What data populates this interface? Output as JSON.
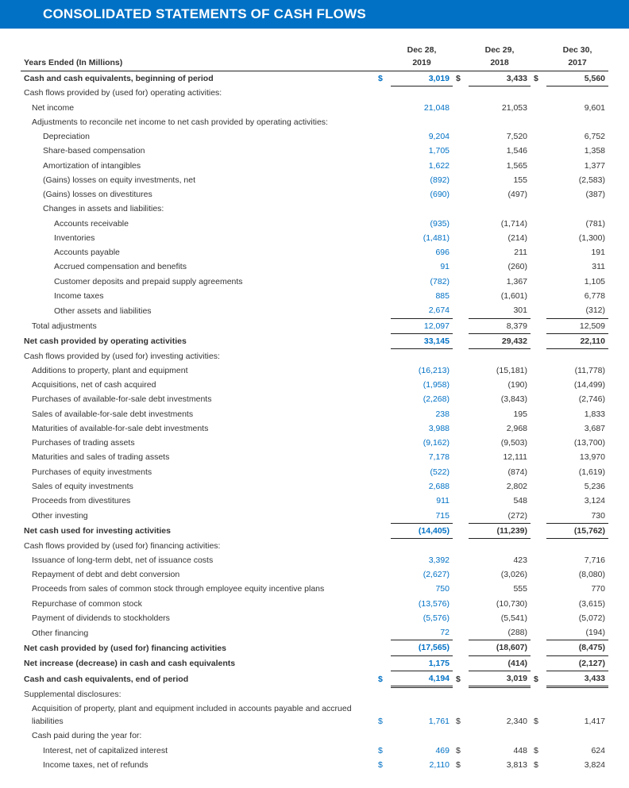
{
  "title": "CONSOLIDATED STATEMENTS OF CASH FLOWS",
  "header": {
    "years_label": "Years Ended (In Millions)",
    "cols": [
      "Dec 28,\n2019",
      "Dec 29,\n2018",
      "Dec 30,\n2017"
    ]
  },
  "rows": [
    {
      "label": "Cash and cash equivalents, beginning of period",
      "bold": true,
      "cur": [
        "$",
        "$",
        "$"
      ],
      "vals": [
        "3,019",
        "3,433",
        "5,560"
      ],
      "blueCol": 0,
      "bb": true
    },
    {
      "label": "Cash flows provided by (used for) operating activities:",
      "vals": [
        "",
        "",
        ""
      ]
    },
    {
      "label": "Net income",
      "ind": 1,
      "vals": [
        "21,048",
        "21,053",
        "9,601"
      ],
      "blueCol": 0
    },
    {
      "label": "Adjustments to reconcile net income to net cash provided by operating activities:",
      "ind": 1,
      "vals": [
        "",
        "",
        ""
      ]
    },
    {
      "label": "Depreciation",
      "ind": 2,
      "vals": [
        "9,204",
        "7,520",
        "6,752"
      ],
      "blueCol": 0
    },
    {
      "label": "Share-based compensation",
      "ind": 2,
      "vals": [
        "1,705",
        "1,546",
        "1,358"
      ],
      "blueCol": 0
    },
    {
      "label": "Amortization of intangibles",
      "ind": 2,
      "vals": [
        "1,622",
        "1,565",
        "1,377"
      ],
      "blueCol": 0
    },
    {
      "label": "(Gains) losses on equity investments, net",
      "ind": 2,
      "vals": [
        "(892)",
        "155",
        "(2,583)"
      ],
      "blueCol": 0
    },
    {
      "label": "(Gains) losses on divestitures",
      "ind": 2,
      "vals": [
        "(690)",
        "(497)",
        "(387)"
      ],
      "blueCol": 0
    },
    {
      "label": "Changes in assets and liabilities:",
      "ind": 2,
      "vals": [
        "",
        "",
        ""
      ]
    },
    {
      "label": "Accounts receivable",
      "ind": 3,
      "vals": [
        "(935)",
        "(1,714)",
        "(781)"
      ],
      "blueCol": 0
    },
    {
      "label": "Inventories",
      "ind": 3,
      "vals": [
        "(1,481)",
        "(214)",
        "(1,300)"
      ],
      "blueCol": 0
    },
    {
      "label": "Accounts payable",
      "ind": 3,
      "vals": [
        "696",
        "211",
        "191"
      ],
      "blueCol": 0
    },
    {
      "label": "Accrued compensation and benefits",
      "ind": 3,
      "vals": [
        "91",
        "(260)",
        "311"
      ],
      "blueCol": 0
    },
    {
      "label": "Customer deposits and prepaid supply agreements",
      "ind": 3,
      "vals": [
        "(782)",
        "1,367",
        "1,105"
      ],
      "blueCol": 0
    },
    {
      "label": "Income taxes",
      "ind": 3,
      "vals": [
        "885",
        "(1,601)",
        "6,778"
      ],
      "blueCol": 0
    },
    {
      "label": "Other assets and liabilities",
      "ind": 3,
      "vals": [
        "2,674",
        "301",
        "(312)"
      ],
      "blueCol": 0
    },
    {
      "label": "Total adjustments",
      "ind": 1,
      "vals": [
        "12,097",
        "8,379",
        "12,509"
      ],
      "blueCol": 0,
      "bt": true
    },
    {
      "label": "Net cash provided by operating activities",
      "bold": true,
      "vals": [
        "33,145",
        "29,432",
        "22,110"
      ],
      "blueCol": 0,
      "bt": true,
      "bb": true
    },
    {
      "label": "Cash flows provided by (used for) investing activities:",
      "vals": [
        "",
        "",
        ""
      ]
    },
    {
      "label": "Additions to property, plant and equipment",
      "ind": 1,
      "vals": [
        "(16,213)",
        "(15,181)",
        "(11,778)"
      ],
      "blueCol": 0
    },
    {
      "label": "Acquisitions, net of cash acquired",
      "ind": 1,
      "vals": [
        "(1,958)",
        "(190)",
        "(14,499)"
      ],
      "blueCol": 0
    },
    {
      "label": "Purchases of available-for-sale debt investments",
      "ind": 1,
      "vals": [
        "(2,268)",
        "(3,843)",
        "(2,746)"
      ],
      "blueCol": 0
    },
    {
      "label": "Sales of available-for-sale debt investments",
      "ind": 1,
      "vals": [
        "238",
        "195",
        "1,833"
      ],
      "blueCol": 0
    },
    {
      "label": "Maturities of available-for-sale debt investments",
      "ind": 1,
      "vals": [
        "3,988",
        "2,968",
        "3,687"
      ],
      "blueCol": 0
    },
    {
      "label": "Purchases of trading assets",
      "ind": 1,
      "vals": [
        "(9,162)",
        "(9,503)",
        "(13,700)"
      ],
      "blueCol": 0
    },
    {
      "label": "Maturities and sales of trading assets",
      "ind": 1,
      "vals": [
        "7,178",
        "12,111",
        "13,970"
      ],
      "blueCol": 0
    },
    {
      "label": "Purchases of equity investments",
      "ind": 1,
      "vals": [
        "(522)",
        "(874)",
        "(1,619)"
      ],
      "blueCol": 0
    },
    {
      "label": "Sales of equity investments",
      "ind": 1,
      "vals": [
        "2,688",
        "2,802",
        "5,236"
      ],
      "blueCol": 0
    },
    {
      "label": "Proceeds from divestitures",
      "ind": 1,
      "vals": [
        "911",
        "548",
        "3,124"
      ],
      "blueCol": 0
    },
    {
      "label": "Other investing",
      "ind": 1,
      "vals": [
        "715",
        "(272)",
        "730"
      ],
      "blueCol": 0
    },
    {
      "label": "Net cash used for investing activities",
      "bold": true,
      "vals": [
        "(14,405)",
        "(11,239)",
        "(15,762)"
      ],
      "blueCol": 0,
      "bt": true,
      "bb": true
    },
    {
      "label": "Cash flows provided by (used for) financing activities:",
      "vals": [
        "",
        "",
        ""
      ]
    },
    {
      "label": "Issuance of long-term debt, net of issuance costs",
      "ind": 1,
      "vals": [
        "3,392",
        "423",
        "7,716"
      ],
      "blueCol": 0
    },
    {
      "label": "Repayment of debt and debt conversion",
      "ind": 1,
      "vals": [
        "(2,627)",
        "(3,026)",
        "(8,080)"
      ],
      "blueCol": 0
    },
    {
      "label": "Proceeds from sales of common stock through employee equity incentive plans",
      "ind": 1,
      "vals": [
        "750",
        "555",
        "770"
      ],
      "blueCol": 0
    },
    {
      "label": "Repurchase of common stock",
      "ind": 1,
      "vals": [
        "(13,576)",
        "(10,730)",
        "(3,615)"
      ],
      "blueCol": 0
    },
    {
      "label": "Payment of dividends to stockholders",
      "ind": 1,
      "vals": [
        "(5,576)",
        "(5,541)",
        "(5,072)"
      ],
      "blueCol": 0
    },
    {
      "label": "Other financing",
      "ind": 1,
      "vals": [
        "72",
        "(288)",
        "(194)"
      ],
      "blueCol": 0
    },
    {
      "label": "Net cash provided by (used for) financing activities",
      "bold": true,
      "vals": [
        "(17,565)",
        "(18,607)",
        "(8,475)"
      ],
      "blueCol": 0,
      "bt": true,
      "bb": true
    },
    {
      "label": "Net increase (decrease) in cash and cash equivalents",
      "bold": true,
      "vals": [
        "1,175",
        "(414)",
        "(2,127)"
      ],
      "blueCol": 0
    },
    {
      "label": "Cash and cash equivalents, end of period",
      "bold": true,
      "cur": [
        "$",
        "$",
        "$"
      ],
      "vals": [
        "4,194",
        "3,019",
        "3,433"
      ],
      "blueCol": 0,
      "bt": true,
      "dbl": true
    },
    {
      "label": "Supplemental disclosures:",
      "vals": [
        "",
        "",
        ""
      ]
    },
    {
      "label": "Acquisition of property, plant and equipment included in accounts payable and accrued liabilities",
      "ind": 1,
      "cur": [
        "$",
        "$",
        "$"
      ],
      "vals": [
        "1,761",
        "2,340",
        "1,417"
      ],
      "blueCol": 0
    },
    {
      "label": "Cash paid during the year for:",
      "ind": 1,
      "vals": [
        "",
        "",
        ""
      ]
    },
    {
      "label": "Interest, net of capitalized interest",
      "ind": 2,
      "cur": [
        "$",
        "$",
        "$"
      ],
      "vals": [
        "469",
        "448",
        "624"
      ],
      "blueCol": 0
    },
    {
      "label": "Income taxes, net of refunds",
      "ind": 2,
      "cur": [
        "$",
        "$",
        "$"
      ],
      "vals": [
        "2,110",
        "3,813",
        "3,824"
      ],
      "blueCol": 0
    }
  ],
  "style": {
    "accent_color": "#0071c5",
    "text_color": "#333333",
    "background_color": "#ffffff",
    "title_fontsize": 17,
    "body_fontsize": 10.5
  }
}
